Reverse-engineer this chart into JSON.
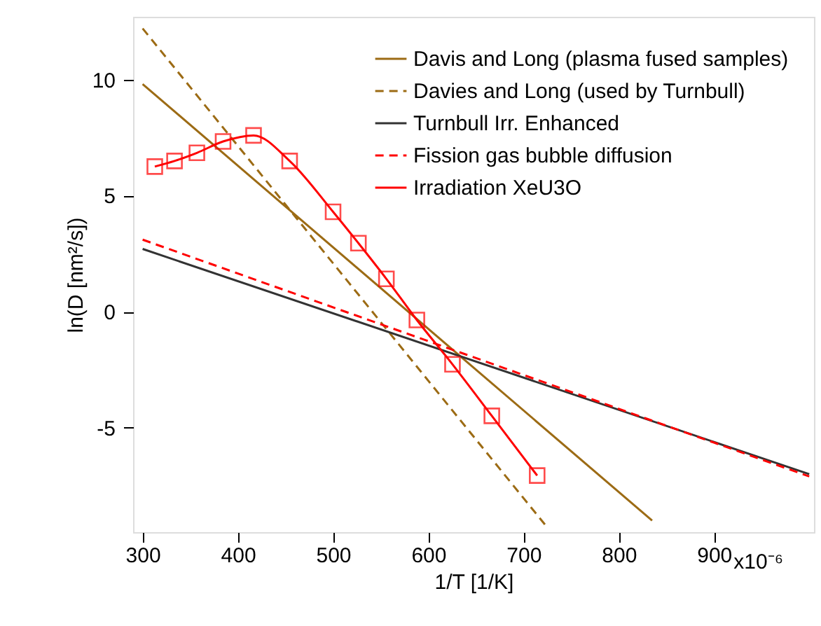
{
  "chart_data": {
    "type": "line",
    "xlabel": "1/T [1/K]",
    "ylabel": "ln(D [nm²/s])",
    "xlim": [
      290,
      1005
    ],
    "ylim": [
      -9.5,
      12.7
    ],
    "xticks": [
      300,
      400,
      500,
      600,
      700,
      800,
      900
    ],
    "annotations": [
      "x10⁻⁶"
    ],
    "yticks": [
      -5,
      0,
      5,
      10
    ],
    "grid": false,
    "legend": "top right",
    "series": [
      {
        "name": "Davis and Long (plasma fused samples)",
        "color": "#9c6b14",
        "line_style": "solid",
        "marker": "none",
        "x": [
          300,
          835
        ],
        "values": [
          9.8,
          -9.0
        ]
      },
      {
        "name": "Davies and Long (used by Turnbull)",
        "color": "#9c6b14",
        "line_style": "dashed",
        "marker": "none",
        "x": [
          300,
          725
        ],
        "values": [
          12.2,
          -9.3
        ]
      },
      {
        "name": "Turnbull Irr. Enhanced",
        "color": "#333333",
        "line_style": "solid",
        "marker": "none",
        "x": [
          300,
          1000
        ],
        "values": [
          2.7,
          -7.0
        ]
      },
      {
        "name": "Fission gas bubble diffusion",
        "color": "#ff0000",
        "line_style": "dashed",
        "marker": "none",
        "x": [
          300,
          1000
        ],
        "values": [
          3.1,
          -7.1
        ]
      },
      {
        "name": "Irradiation XeU3O",
        "color": "#ff0000",
        "line_style": "solid",
        "marker": "square",
        "x": [
          312.8,
          333.5,
          357,
          384.5,
          416.5,
          454.4,
          500,
          526.6,
          556,
          588,
          625.4,
          666.7,
          714.3
        ],
        "values": [
          6.25,
          6.49,
          6.84,
          7.33,
          7.59,
          6.49,
          4.3,
          2.95,
          1.41,
          -0.36,
          -2.27,
          -4.49,
          -7.06
        ]
      }
    ]
  }
}
